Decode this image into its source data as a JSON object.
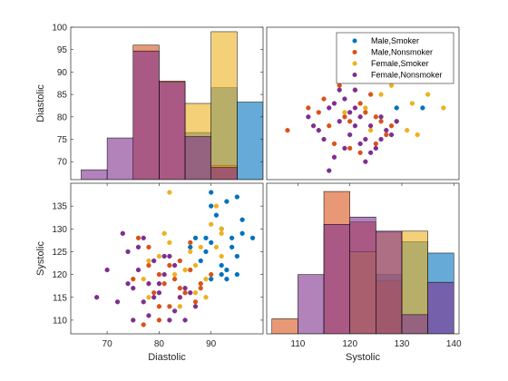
{
  "colors": {
    "male_smoker": "#0072BD",
    "male_nonsmoker": "#D95319",
    "female_smoker": "#EDB120",
    "female_nonsmoker": "#7E2F8E",
    "axis": "#262626",
    "background": "#ffffff"
  },
  "chart_data": {
    "type": "scatter-matrix",
    "variables": [
      "Diastolic",
      "Systolic"
    ],
    "groups": [
      "Male,Smoker",
      "Male,Nonsmoker",
      "Female,Smoker",
      "Female,Nonsmoker"
    ],
    "legend_location": "top-right of upper-right panel",
    "panels": [
      {
        "name": "diastolic-histogram",
        "type": "histogram",
        "xlabel": "",
        "ylabel": "Diastolic",
        "xlim": [
          63,
          100
        ],
        "ylim": [
          66,
          100
        ],
        "yticks": [
          70,
          75,
          80,
          85,
          90,
          95,
          100
        ],
        "bin_edges": [
          65,
          70,
          75,
          80,
          85,
          90,
          95,
          100
        ],
        "series": [
          {
            "group": "Male,Smoker",
            "bar_tops": [
              null,
              null,
              null,
              null,
              76.5,
              86.5,
              83.3
            ]
          },
          {
            "group": "Male,Nonsmoker",
            "bar_tops": [
              null,
              null,
              96.0,
              88.0,
              null,
              69.2,
              null
            ]
          },
          {
            "group": "Female,Smoker",
            "bar_tops": [
              null,
              null,
              null,
              null,
              83.0,
              99.0,
              null
            ]
          },
          {
            "group": "Female,Nonsmoker",
            "bar_tops": [
              68.2,
              75.3,
              94.7,
              87.7,
              75.6,
              68.7,
              null
            ]
          }
        ]
      },
      {
        "name": "systolic-vs-diastolic-scatter",
        "type": "scatter",
        "xlabel": "",
        "ylabel": "",
        "xlim": [
          104,
          141
        ],
        "ylim": [
          66,
          100
        ],
        "series": [
          {
            "group": "Male,Smoker",
            "points": [
              [
                129,
                82
              ],
              [
                134,
                82
              ]
            ]
          },
          {
            "group": "Male,Nonsmoker",
            "points": [
              [
                108,
                77
              ],
              [
                112,
                82
              ],
              [
                114,
                81
              ],
              [
                115,
                84
              ],
              [
                116,
                78
              ],
              [
                118,
                87
              ],
              [
                119,
                80
              ],
              [
                120,
                79
              ],
              [
                121,
                86
              ],
              [
                122,
                83
              ],
              [
                123,
                81
              ],
              [
                124,
                85
              ],
              [
                125,
                80
              ],
              [
                126,
                79
              ],
              [
                127,
                76
              ],
              [
                117,
                74
              ],
              [
                120,
                73
              ],
              [
                122,
                72
              ],
              [
                125,
                74
              ],
              [
                128,
                78
              ]
            ]
          },
          {
            "group": "Female,Smoker",
            "points": [
              [
                119,
                81
              ],
              [
                123,
                82
              ],
              [
                124,
                77
              ],
              [
                126,
                85
              ],
              [
                128,
                87
              ],
              [
                130,
                88
              ],
              [
                132,
                83
              ],
              [
                135,
                85
              ],
              [
                138,
                82
              ],
              [
                129,
                79
              ],
              [
                131,
                77
              ],
              [
                133,
                76
              ]
            ]
          },
          {
            "group": "Female,Nonsmoker",
            "points": [
              [
                112,
                80
              ],
              [
                113,
                78
              ],
              [
                114,
                77
              ],
              [
                115,
                75
              ],
              [
                116,
                82
              ],
              [
                117,
                83
              ],
              [
                118,
                86
              ],
              [
                118,
                79
              ],
              [
                119,
                84
              ],
              [
                120,
                76
              ],
              [
                120,
                81
              ],
              [
                121,
                78
              ],
              [
                122,
                80
              ],
              [
                123,
                75
              ],
              [
                124,
                78
              ],
              [
                125,
                73
              ],
              [
                126,
                80
              ],
              [
                127,
                77
              ],
              [
                128,
                76
              ],
              [
                116,
                68
              ],
              [
                117,
                71
              ],
              [
                119,
                73
              ],
              [
                121,
                86
              ],
              [
                122,
                74
              ],
              [
                123,
                70
              ],
              [
                124,
                72
              ],
              [
                126,
                75
              ],
              [
                129,
                79
              ],
              [
                121,
                82
              ]
            ]
          }
        ]
      },
      {
        "name": "diastolic-vs-systolic-scatter",
        "type": "scatter",
        "xlabel": "Diastolic",
        "ylabel": "Systolic",
        "xlim": [
          63,
          100
        ],
        "ylim": [
          107,
          140
        ],
        "xticks": [
          70,
          80,
          90
        ],
        "yticks": [
          110,
          115,
          120,
          125,
          130,
          135
        ],
        "series": [
          {
            "group": "Male,Smoker",
            "points": [
              [
                88,
                123
              ],
              [
                89,
                125
              ],
              [
                90,
                127
              ],
              [
                90,
                138
              ],
              [
                92,
                130
              ],
              [
                92,
                122
              ],
              [
                93,
                136
              ],
              [
                94,
                128
              ],
              [
                95,
                124
              ],
              [
                96,
                129
              ],
              [
                96,
                132
              ],
              [
                98,
                128
              ],
              [
                91,
                133
              ],
              [
                93,
                121
              ],
              [
                94,
                126
              ],
              [
                95,
                120
              ],
              [
                86,
                126
              ],
              [
                87,
                128
              ],
              [
                90,
                135
              ],
              [
                95,
                137
              ],
              [
                90,
                119
              ],
              [
                93,
                119
              ],
              [
                92,
                120
              ],
              [
                89,
                128
              ]
            ]
          },
          {
            "group": "Male,Nonsmoker",
            "points": [
              [
                76,
                128
              ],
              [
                77,
                109
              ],
              [
                78,
                122
              ],
              [
                79,
                116
              ],
              [
                80,
                120
              ],
              [
                80,
                113
              ],
              [
                81,
                118
              ],
              [
                82,
                122
              ],
              [
                83,
                119
              ],
              [
                84,
                123
              ],
              [
                85,
                116
              ],
              [
                86,
                127
              ],
              [
                87,
                114
              ],
              [
                88,
                117
              ],
              [
                75,
                119
              ],
              [
                78,
                126
              ],
              [
                80,
                110
              ],
              [
                82,
                113
              ],
              [
                84,
                117
              ],
              [
                86,
                121
              ],
              [
                88,
                118
              ],
              [
                90,
                120
              ]
            ]
          },
          {
            "group": "Female,Smoker",
            "points": [
              [
                77,
                119
              ],
              [
                78,
                115
              ],
              [
                80,
                124
              ],
              [
                82,
                138
              ],
              [
                83,
                120
              ],
              [
                84,
                113
              ],
              [
                86,
                125
              ],
              [
                87,
                122
              ],
              [
                88,
                126
              ],
              [
                89,
                115
              ],
              [
                90,
                131
              ],
              [
                91,
                135
              ],
              [
                92,
                129
              ],
              [
                92,
                124
              ],
              [
                82,
                127
              ],
              [
                85,
                121
              ],
              [
                87,
                116
              ],
              [
                89,
                119
              ],
              [
                91,
                126
              ],
              [
                92,
                130
              ],
              [
                78,
                123
              ],
              [
                81,
                129
              ]
            ]
          },
          {
            "group": "Female,Nonsmoker",
            "points": [
              [
                68,
                115
              ],
              [
                70,
                121
              ],
              [
                72,
                114
              ],
              [
                73,
                129
              ],
              [
                74,
                125
              ],
              [
                75,
                117
              ],
              [
                76,
                121
              ],
              [
                77,
                114
              ],
              [
                78,
                111
              ],
              [
                79,
                123
              ],
              [
                80,
                118
              ],
              [
                81,
                120
              ],
              [
                82,
                110
              ],
              [
                83,
                122
              ],
              [
                84,
                115
              ],
              [
                85,
                117
              ],
              [
                86,
                116
              ],
              [
                87,
                113
              ],
              [
                74,
                118
              ],
              [
                75,
                110
              ],
              [
                77,
                128
              ],
              [
                79,
                115
              ],
              [
                81,
                124
              ],
              [
                83,
                112
              ],
              [
                80,
                116
              ],
              [
                82,
                124
              ],
              [
                76,
                126
              ],
              [
                85,
                110
              ],
              [
                78,
                118
              ]
            ]
          }
        ]
      },
      {
        "name": "systolic-histogram",
        "type": "histogram",
        "xlabel": "Systolic",
        "ylabel": "",
        "xlim": [
          104,
          141
        ],
        "ylim": [
          107,
          140
        ],
        "xticks": [
          110,
          120,
          130,
          140
        ],
        "bin_edges": [
          105,
          110,
          115,
          120,
          125,
          130,
          135,
          140
        ],
        "series": [
          {
            "group": "Male,Smoker",
            "bar_tops": [
              null,
              null,
              null,
              null,
              120.0,
              127.2,
              124.7
            ]
          },
          {
            "group": "Male,Nonsmoker",
            "bar_tops": [
              110.3,
              null,
              138.2,
              131.5,
              118.6,
              null,
              null
            ]
          },
          {
            "group": "Female,Smoker",
            "bar_tops": [
              null,
              null,
              null,
              125.0,
              129.3,
              129.5,
              null
            ]
          },
          {
            "group": "Female,Nonsmoker",
            "bar_tops": [
              null,
              120.0,
              131.0,
              132.6,
              129.5,
              111.2,
              118.3
            ]
          }
        ]
      }
    ]
  }
}
